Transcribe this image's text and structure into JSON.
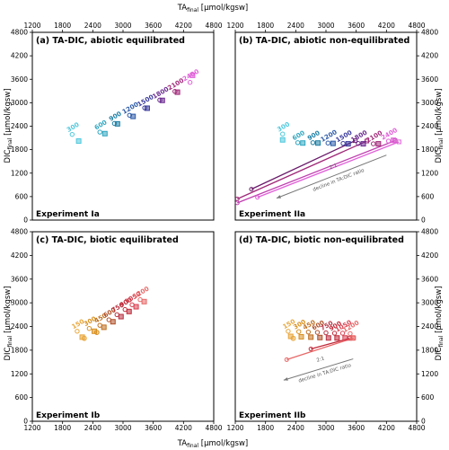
{
  "chart_data": [
    {
      "id": "a",
      "type": "scatter",
      "title": "(a) TA-DIC, abiotic equilibrated",
      "experiment": "Experiment Ia",
      "xlim": [
        1200,
        4800
      ],
      "ylim": [
        0,
        4800
      ],
      "xticks": [
        "1200",
        "1800",
        "2400",
        "3000",
        "3600",
        "4200",
        "4800"
      ],
      "yticks": [
        "0",
        "600",
        "1200",
        "1800",
        "2400",
        "3000",
        "3600",
        "4200",
        "4800"
      ],
      "points": [
        {
          "label": "300",
          "color": "#4fc8dc",
          "pts": [
            [
              1990,
              2190
            ],
            [
              2120,
              2020
            ]
          ]
        },
        {
          "label": "600",
          "color": "#2ea6c0",
          "pts": [
            [
              2540,
              2250
            ],
            [
              2640,
              2210
            ]
          ]
        },
        {
          "label": "900",
          "color": "#1e7fa4",
          "pts": [
            [
              2830,
              2470
            ],
            [
              2890,
              2460
            ]
          ]
        },
        {
          "label": "1200",
          "color": "#2d5ba8",
          "pts": [
            [
              3130,
              2680
            ],
            [
              3200,
              2650
            ]
          ]
        },
        {
          "label": "1500",
          "color": "#3a3a9c",
          "pts": [
            [
              3430,
              2870
            ],
            [
              3480,
              2860
            ]
          ]
        },
        {
          "label": "1800",
          "color": "#6a2a90",
          "pts": [
            [
              3730,
              3070
            ],
            [
              3780,
              3060
            ]
          ]
        },
        {
          "label": "2100",
          "color": "#a02878",
          "pts": [
            [
              4030,
              3290
            ],
            [
              4080,
              3270
            ]
          ]
        },
        {
          "label": "2400",
          "color": "#e060d8",
          "pts": [
            [
              4330,
              3520
            ],
            [
              4380,
              3700
            ]
          ]
        }
      ],
      "lines": []
    },
    {
      "id": "b",
      "type": "scatter",
      "title": "(b) TA-DIC, abiotic non-equilibrated",
      "experiment": "Experiment IIa",
      "xlim": [
        1200,
        4800
      ],
      "ylim": [
        0,
        4800
      ],
      "xticks": [
        "1200",
        "1800",
        "2400",
        "3000",
        "3600",
        "4200",
        "4800"
      ],
      "yticks": [
        "0",
        "600",
        "1200",
        "1800",
        "2400",
        "3000",
        "3600",
        "4200",
        "4800"
      ],
      "points": [
        {
          "label": "300",
          "color": "#4fc8dc",
          "pts": [
            [
              2140,
              2200
            ],
            [
              2140,
              2050
            ]
          ]
        },
        {
          "label": "600",
          "color": "#2ea6c0",
          "pts": [
            [
              2440,
              1980
            ],
            [
              2540,
              1970
            ]
          ]
        },
        {
          "label": "900",
          "color": "#1e7fa4",
          "pts": [
            [
              2740,
              1980
            ],
            [
              2840,
              1970
            ]
          ]
        },
        {
          "label": "1200",
          "color": "#2d5ba8",
          "pts": [
            [
              3040,
              1970
            ],
            [
              3140,
              1960
            ]
          ]
        },
        {
          "label": "1500",
          "color": "#3a3a9c",
          "pts": [
            [
              3340,
              1960
            ],
            [
              3440,
              1950
            ]
          ]
        },
        {
          "label": "1800",
          "color": "#6a2a90",
          "pts": [
            [
              3640,
              1960
            ],
            [
              3740,
              1950
            ]
          ]
        },
        {
          "label": "2100",
          "color": "#a02878",
          "pts": [
            [
              3940,
              1950
            ],
            [
              4040,
              1950
            ]
          ]
        },
        {
          "label": "2400",
          "color": "#e060d8",
          "pts": [
            [
              4240,
              2020
            ],
            [
              4340,
              2040
            ]
          ]
        }
      ],
      "lines": [
        {
          "color": "#6a1a6a",
          "pts": [
            [
              1520,
              790
            ],
            [
              3580,
              2030
            ]
          ]
        },
        {
          "color": "#a02878",
          "pts": [
            [
              1240,
              540
            ],
            [
              3810,
              2020
            ]
          ]
        },
        {
          "color": "#c040b0",
          "pts": [
            [
              1240,
              440
            ],
            [
              4370,
              2030
            ]
          ]
        },
        {
          "color": "#e060d8",
          "pts": [
            [
              1640,
              580
            ],
            [
              4450,
              2000
            ]
          ]
        }
      ],
      "arrow": {
        "from": [
          4200,
          1660
        ],
        "to": [
          2020,
          560
        ]
      },
      "annotation": [
        "2:1",
        "decline in TA:DIC ratio"
      ]
    },
    {
      "id": "c",
      "type": "scatter",
      "title": "(c) TA-DIC, biotic equilibrated",
      "experiment": "Experiment Ib",
      "xlim": [
        1200,
        4800
      ],
      "ylim": [
        0,
        4800
      ],
      "xticks": [
        "1200",
        "1800",
        "2400",
        "3000",
        "3600",
        "4200",
        "4800"
      ],
      "yticks": [
        "0",
        "600",
        "1200",
        "1800",
        "2400",
        "3000",
        "3600",
        "4200",
        "4800"
      ],
      "points": [
        {
          "label": "150",
          "color": "#e8a63a",
          "pts": [
            [
              2090,
              2280
            ],
            [
              2190,
              2130
            ],
            [
              2230,
              2100
            ]
          ]
        },
        {
          "label": "300",
          "color": "#d89020",
          "pts": [
            [
              2330,
              2350
            ],
            [
              2430,
              2280
            ],
            [
              2480,
              2250
            ]
          ]
        },
        {
          "label": "450",
          "color": "#c07020",
          "pts": [
            [
              2540,
              2430
            ],
            [
              2620,
              2380
            ]
          ]
        },
        {
          "label": "600",
          "color": "#b05028",
          "pts": [
            [
              2720,
              2570
            ],
            [
              2800,
              2520
            ]
          ]
        },
        {
          "label": "750",
          "color": "#b83040",
          "pts": [
            [
              2880,
              2700
            ],
            [
              2960,
              2650
            ]
          ]
        },
        {
          "label": "900",
          "color": "#c02838",
          "pts": [
            [
              3040,
              2830
            ],
            [
              3120,
              2780
            ]
          ]
        },
        {
          "label": "1050",
          "color": "#d84050",
          "pts": [
            [
              3180,
              2950
            ],
            [
              3260,
              2900
            ]
          ]
        },
        {
          "label": "1200",
          "color": "#e86868",
          "pts": [
            [
              3340,
              3080
            ],
            [
              3420,
              3030
            ]
          ]
        }
      ],
      "lines": []
    },
    {
      "id": "d",
      "type": "scatter",
      "title": "(d) TA-DIC, biotic non-equilibrated",
      "experiment": "Experiment IIb",
      "xlim": [
        1200,
        4800
      ],
      "ylim": [
        0,
        4800
      ],
      "xticks": [
        "1200",
        "1800",
        "2400",
        "3000",
        "3600",
        "4200",
        "4800"
      ],
      "yticks": [
        "0",
        "600",
        "1200",
        "1800",
        "2400",
        "3000",
        "3600",
        "4200",
        "4800"
      ],
      "points": [
        {
          "label": "150",
          "color": "#e8a63a",
          "pts": [
            [
              2250,
              2280
            ],
            [
              2300,
              2150
            ],
            [
              2350,
              2100
            ]
          ]
        },
        {
          "label": "300",
          "color": "#d89020",
          "pts": [
            [
              2460,
              2270
            ],
            [
              2510,
              2140
            ]
          ]
        },
        {
          "label": "450",
          "color": "#c07020",
          "pts": [
            [
              2650,
              2260
            ],
            [
              2700,
              2130
            ]
          ]
        },
        {
          "label": "600",
          "color": "#b05028",
          "pts": [
            [
              2830,
              2250
            ],
            [
              2880,
              2120
            ]
          ]
        },
        {
          "label": "750",
          "color": "#b83040",
          "pts": [
            [
              3000,
              2240
            ],
            [
              3050,
              2110
            ]
          ]
        },
        {
          "label": "900",
          "color": "#c02838",
          "pts": [
            [
              3170,
              2230
            ],
            [
              3220,
              2110
            ]
          ]
        },
        {
          "label": "1050",
          "color": "#d84050",
          "pts": [
            [
              3330,
              2230
            ],
            [
              3380,
              2110
            ]
          ]
        },
        {
          "label": "1200",
          "color": "#e86868",
          "pts": [
            [
              3480,
              2220
            ],
            [
              3530,
              2110
            ]
          ]
        }
      ],
      "lines": [
        {
          "color": "#c02838",
          "pts": [
            [
              2700,
              1830
            ],
            [
              3470,
              2100
            ]
          ]
        },
        {
          "color": "#e86868",
          "pts": [
            [
              2220,
              1560
            ],
            [
              3550,
              2110
            ]
          ]
        }
      ],
      "arrow": {
        "from": [
          3540,
          1580
        ],
        "to": [
          2160,
          1040
        ]
      },
      "annotation": [
        "2:1",
        "decline in TA:DIC ratio"
      ]
    }
  ],
  "axes": {
    "xlabel_main": "TA",
    "xlabel_sub": "final",
    "xlabel_unit": " [μmol/kgsw]",
    "ylabel_main": "DIC",
    "ylabel_sub": "final",
    "ylabel_unit": " [μmol/kgsw]"
  }
}
